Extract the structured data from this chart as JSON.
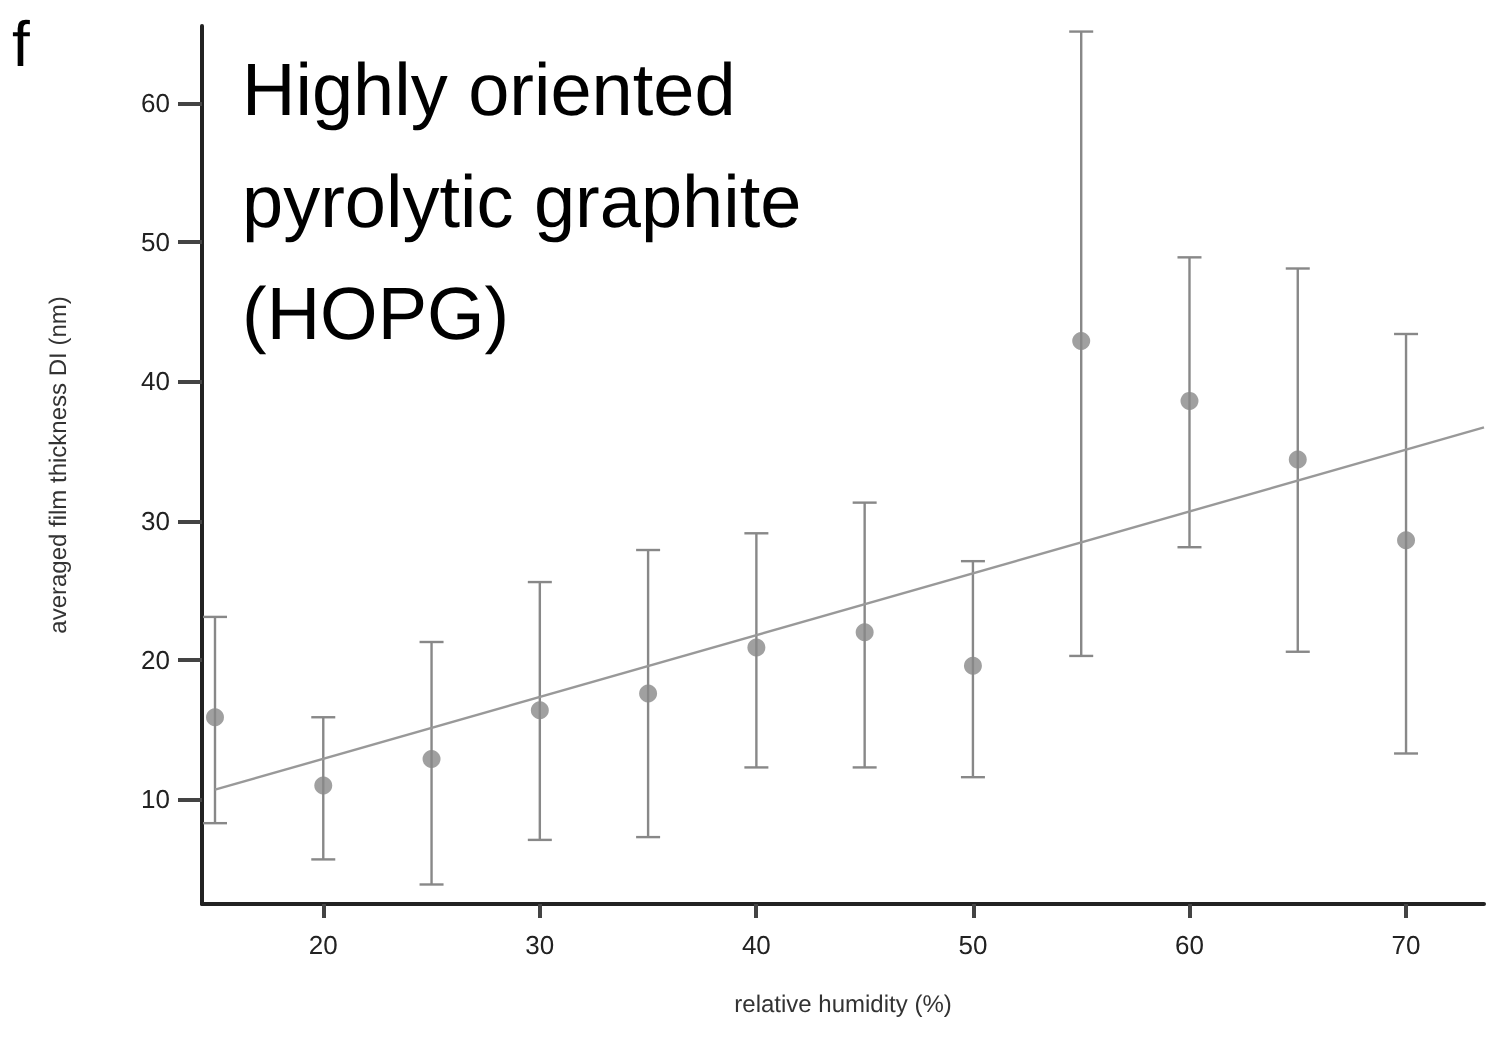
{
  "chart_data": {
    "type": "scatter",
    "title": "Highly oriented pyrolytic graphite (HOPG)",
    "xlabel": "relative humidity (%)",
    "ylabel": "averaged film thickness DI (nm)",
    "annotations": [
      "f"
    ],
    "xlim": [
      14.4,
      73.6
    ],
    "xticks": [
      20,
      30,
      40,
      50,
      60,
      70
    ],
    "ylim": [
      2.5,
      65.5
    ],
    "yticks": [
      10,
      20,
      30,
      40,
      50,
      60
    ],
    "grid": false,
    "series": [
      {
        "color": "#888888",
        "marker": "circle",
        "x": [
          15,
          20,
          25,
          30,
          35,
          40,
          45,
          50,
          55,
          60,
          65,
          70
        ],
        "values": [
          15.9,
          11.0,
          12.9,
          16.4,
          17.6,
          20.9,
          22.0,
          19.6,
          42.9,
          38.6,
          34.4,
          28.6
        ],
        "errors": [
          [
            8.3,
            23.1
          ],
          [
            5.7,
            15.9
          ],
          [
            3.9,
            21.3
          ],
          [
            7.1,
            25.6
          ],
          [
            7.3,
            27.9
          ],
          [
            12.3,
            29.1
          ],
          [
            12.3,
            31.3
          ],
          [
            11.6,
            27.1
          ],
          [
            20.3,
            65.1
          ],
          [
            28.1,
            48.9
          ],
          [
            20.6,
            48.1
          ],
          [
            13.3,
            43.4
          ]
        ]
      },
      {
        "type": "line",
        "color": "#999999",
        "marker": "none",
        "line_style": "solid",
        "x": [
          15,
          73.6
        ],
        "values": [
          10.7,
          36.7
        ]
      }
    ]
  }
}
